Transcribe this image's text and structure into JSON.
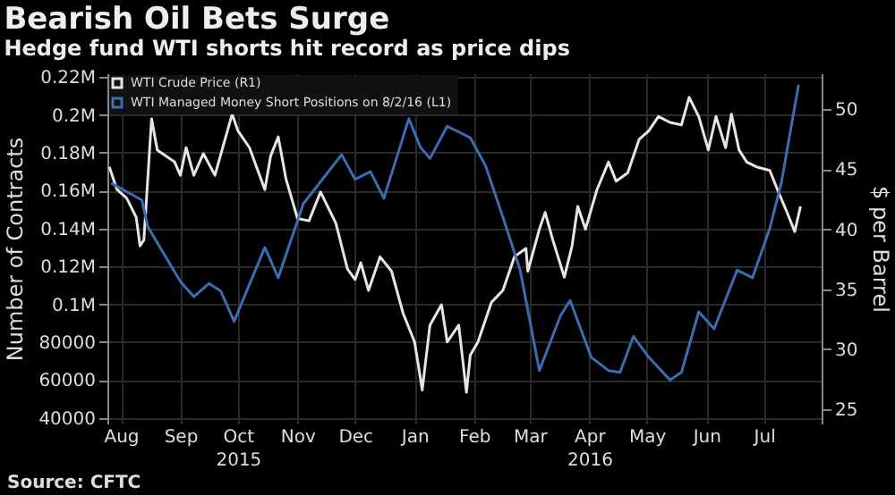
{
  "chart_data": {
    "type": "line",
    "title": "Bearish Oil Bets Surge",
    "subtitle": "Hedge fund WTI shorts hit record as price dips",
    "ylabel": "Number of Contracts",
    "y2label": "$ per Barrel",
    "annotations": [
      "Source: CFTC"
    ],
    "legend": "top left",
    "grid": true,
    "marker": "none",
    "line_style": "solid",
    "xlim": [
      "2015-08-08",
      "2016-08-14"
    ],
    "xticks": [
      {
        "value": "2015-08-15",
        "label": "Aug"
      },
      {
        "value": "2015-09-15",
        "label": "Sep"
      },
      {
        "value": "2015-10-15",
        "label": "Oct\n2015"
      },
      {
        "value": "2015-11-15",
        "label": "Nov"
      },
      {
        "value": "2015-12-15",
        "label": "Dec"
      },
      {
        "value": "2016-01-15",
        "label": "Jan"
      },
      {
        "value": "2016-02-15",
        "label": "Feb"
      },
      {
        "value": "2016-03-15",
        "label": "Mar"
      },
      {
        "value": "2016-04-15",
        "label": "Apr\n2016"
      },
      {
        "value": "2016-05-15",
        "label": "May"
      },
      {
        "value": "2016-06-15",
        "label": "Jun"
      },
      {
        "value": "2016-07-15",
        "label": "Jul"
      }
    ],
    "ylim": [
      37000,
      222000
    ],
    "yticks": [
      40000,
      60000,
      80000,
      {
        "value": 100000,
        "label": "0.1M"
      },
      {
        "value": 120000,
        "label": "0.12M"
      },
      {
        "value": 140000,
        "label": "0.14M"
      },
      {
        "value": 160000,
        "label": "0.16M"
      },
      {
        "value": 180000,
        "label": "0.18M"
      },
      {
        "value": 200000,
        "label": "0.2M"
      },
      {
        "value": 220000,
        "label": "0.22M"
      }
    ],
    "y2lim": [
      23.8,
      53
    ],
    "y2ticks": [
      25,
      30,
      35,
      40,
      45,
      50
    ],
    "series": [
      {
        "name": "WTI Crude Price (R1)",
        "color": "#e6e6e6",
        "axis": "y2",
        "x": [
          "2015-08-09",
          "2015-08-13",
          "2015-08-18",
          "2015-08-23",
          "2015-08-25",
          "2015-08-27",
          "2015-08-31",
          "2015-09-03",
          "2015-09-12",
          "2015-09-15",
          "2015-09-18",
          "2015-09-22",
          "2015-09-27",
          "2015-10-03",
          "2015-10-12",
          "2015-10-15",
          "2015-10-21",
          "2015-10-29",
          "2015-11-01",
          "2015-11-05",
          "2015-11-09",
          "2015-11-15",
          "2015-11-21",
          "2015-11-27",
          "2015-12-05",
          "2015-12-11",
          "2015-12-15",
          "2015-12-18",
          "2015-12-22",
          "2015-12-28",
          "2016-01-03",
          "2016-01-09",
          "2016-01-15",
          "2016-01-19",
          "2016-01-23",
          "2016-01-29",
          "2016-02-01",
          "2016-02-07",
          "2016-02-11",
          "2016-02-13",
          "2016-02-17",
          "2016-02-24",
          "2016-03-01",
          "2016-03-07",
          "2016-03-13",
          "2016-03-14",
          "2016-03-20",
          "2016-03-23",
          "2016-03-27",
          "2016-04-02",
          "2016-04-06",
          "2016-04-09",
          "2016-04-13",
          "2016-04-19",
          "2016-04-25",
          "2016-04-29",
          "2016-05-05",
          "2016-05-11",
          "2016-05-16",
          "2016-05-21",
          "2016-05-27",
          "2016-06-02",
          "2016-06-06",
          "2016-06-11",
          "2016-06-16",
          "2016-06-20",
          "2016-06-25",
          "2016-06-28",
          "2016-07-02",
          "2016-07-06",
          "2016-07-11",
          "2016-07-18",
          "2016-07-22",
          "2016-07-27",
          "2016-07-31",
          "2016-08-03"
        ],
        "values": [
          45.2,
          43.3,
          42.6,
          41.0,
          38.6,
          39.1,
          49.2,
          46.6,
          45.6,
          44.5,
          46.8,
          44.5,
          46.3,
          44.5,
          49.6,
          48.2,
          46.8,
          43.3,
          46.1,
          47.7,
          44.2,
          40.9,
          40.7,
          43.1,
          40.5,
          36.7,
          35.8,
          37.2,
          34.9,
          37.7,
          36.5,
          33.0,
          30.6,
          26.6,
          32.0,
          33.7,
          30.6,
          32.0,
          26.4,
          29.5,
          30.6,
          33.9,
          34.9,
          37.7,
          38.4,
          36.5,
          40.0,
          41.4,
          39.1,
          36.0,
          38.6,
          41.9,
          40.0,
          43.3,
          45.6,
          44.0,
          44.7,
          47.5,
          48.2,
          49.4,
          48.9,
          48.7,
          51.0,
          49.4,
          46.6,
          49.4,
          46.8,
          49.6,
          46.6,
          45.6,
          45.2,
          44.9,
          43.3,
          41.4,
          39.8,
          41.9
        ]
      },
      {
        "name": "WTI Managed Money Short Positions  on 8/2/16 (L1)",
        "color": "#3b6db3",
        "x": [
          "2015-08-10",
          "2015-08-26",
          "2015-08-29",
          "2015-09-15",
          "2015-09-22",
          "2015-09-30",
          "2015-10-06",
          "2015-10-13",
          "2015-10-29",
          "2015-11-05",
          "2015-11-18",
          "2015-12-08",
          "2015-12-15",
          "2015-12-23",
          "2015-12-30",
          "2016-01-12",
          "2016-01-18",
          "2016-01-23",
          "2016-02-01",
          "2016-02-13",
          "2016-02-21",
          "2016-03-01",
          "2016-03-10",
          "2016-03-20",
          "2016-03-31",
          "2016-04-05",
          "2016-04-16",
          "2016-04-25",
          "2016-05-01",
          "2016-05-08",
          "2016-05-16",
          "2016-05-27",
          "2016-06-02",
          "2016-06-11",
          "2016-06-19",
          "2016-07-01",
          "2016-07-09",
          "2016-07-18",
          "2016-07-24",
          "2016-08-02"
        ],
        "values": [
          164000,
          155000,
          141000,
          112000,
          104000,
          111000,
          107000,
          91000,
          130000,
          114000,
          153000,
          179000,
          166000,
          170000,
          156000,
          198000,
          183000,
          177000,
          194000,
          188000,
          173000,
          146000,
          118000,
          65000,
          94000,
          102000,
          72000,
          65000,
          64000,
          83000,
          72000,
          60000,
          64000,
          96000,
          87000,
          118000,
          114000,
          140000,
          164000,
          216000
        ]
      }
    ]
  }
}
